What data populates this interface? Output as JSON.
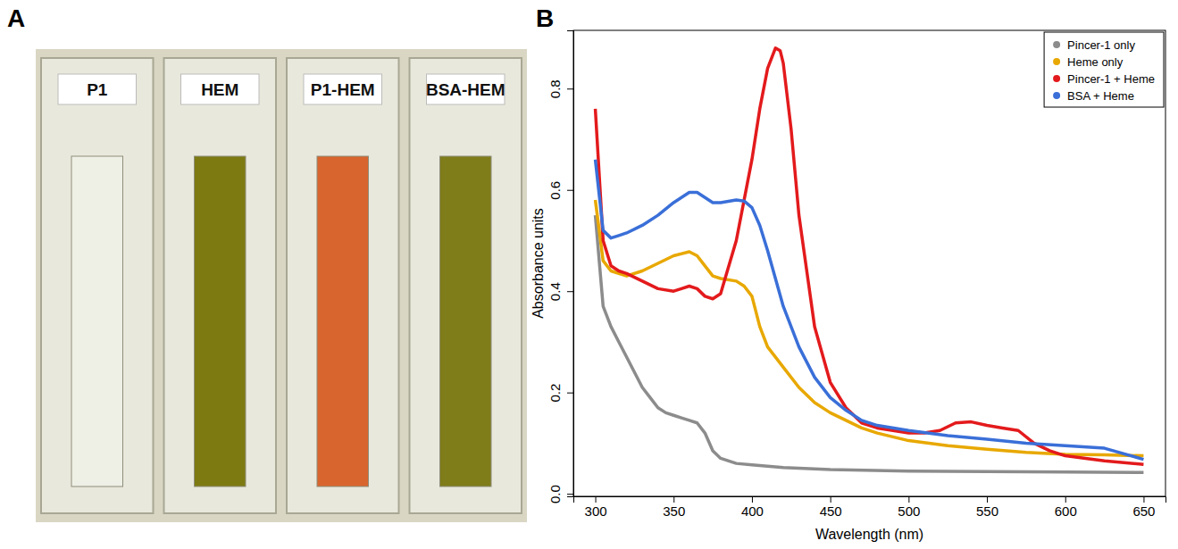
{
  "photo": {
    "letter": "A",
    "cuvettes": [
      {
        "label": "P1",
        "color": "#eef0e6"
      },
      {
        "label": "HEM",
        "color": "#7d7a12"
      },
      {
        "label": "P1-HEM",
        "color": "#d8652e"
      },
      {
        "label": "BSA-HEM",
        "color": "#7f7c1a"
      }
    ]
  },
  "chart_data": {
    "type": "line",
    "letter": "B",
    "x_label": "Wavelength (nm)",
    "y_label": "Absorbance units",
    "xlim": [
      286,
      664
    ],
    "xticks": [
      300,
      350,
      400,
      450,
      500,
      550,
      600,
      650
    ],
    "ylim": [
      -0.005,
      0.915
    ],
    "yticks": [
      {
        "value": 0,
        "label": "0.0"
      },
      0.2,
      0.4,
      0.6,
      0.8
    ],
    "legend": "top-right",
    "grid": false,
    "series": [
      {
        "name": "Pincer-1 only",
        "color": "#8c8c8c",
        "x": [
          300,
          305,
          310,
          315,
          320,
          325,
          330,
          335,
          340,
          345,
          350,
          355,
          360,
          365,
          370,
          375,
          380,
          390,
          400,
          420,
          450,
          500,
          550,
          600,
          650
        ],
        "values": [
          0.55,
          0.37,
          0.33,
          0.3,
          0.27,
          0.24,
          0.21,
          0.19,
          0.17,
          0.16,
          0.155,
          0.15,
          0.145,
          0.14,
          0.12,
          0.085,
          0.07,
          0.06,
          0.057,
          0.052,
          0.048,
          0.045,
          0.044,
          0.043,
          0.042
        ]
      },
      {
        "name": "Heme only",
        "color": "#e8a800",
        "x": [
          300,
          305,
          310,
          320,
          330,
          340,
          350,
          360,
          365,
          370,
          375,
          380,
          390,
          395,
          400,
          405,
          410,
          420,
          430,
          440,
          450,
          460,
          470,
          480,
          500,
          525,
          550,
          575,
          600,
          625,
          650
        ],
        "values": [
          0.58,
          0.46,
          0.44,
          0.43,
          0.44,
          0.455,
          0.47,
          0.478,
          0.47,
          0.45,
          0.43,
          0.425,
          0.42,
          0.41,
          0.39,
          0.33,
          0.29,
          0.25,
          0.21,
          0.18,
          0.16,
          0.145,
          0.13,
          0.12,
          0.105,
          0.095,
          0.088,
          0.082,
          0.078,
          0.077,
          0.075
        ]
      },
      {
        "name": "Pincer-1 + Heme",
        "color": "#e31a1c",
        "x": [
          300,
          305,
          310,
          315,
          320,
          330,
          340,
          350,
          355,
          360,
          365,
          370,
          375,
          380,
          390,
          400,
          405,
          410,
          415,
          418,
          420,
          425,
          430,
          440,
          450,
          460,
          470,
          480,
          490,
          500,
          510,
          520,
          530,
          540,
          550,
          560,
          570,
          580,
          590,
          600,
          625,
          650
        ],
        "values": [
          0.76,
          0.5,
          0.45,
          0.44,
          0.435,
          0.42,
          0.405,
          0.4,
          0.405,
          0.41,
          0.405,
          0.39,
          0.385,
          0.395,
          0.5,
          0.66,
          0.76,
          0.84,
          0.88,
          0.875,
          0.85,
          0.72,
          0.55,
          0.33,
          0.22,
          0.17,
          0.14,
          0.13,
          0.125,
          0.12,
          0.12,
          0.125,
          0.14,
          0.142,
          0.135,
          0.13,
          0.125,
          0.1,
          0.085,
          0.075,
          0.065,
          0.058
        ]
      },
      {
        "name": "BSA + Heme",
        "color": "#3a6fd8",
        "x": [
          300,
          305,
          310,
          315,
          320,
          330,
          340,
          350,
          360,
          365,
          370,
          375,
          380,
          390,
          395,
          400,
          405,
          410,
          420,
          430,
          440,
          450,
          460,
          470,
          480,
          500,
          525,
          550,
          575,
          600,
          625,
          650
        ],
        "values": [
          0.66,
          0.52,
          0.505,
          0.51,
          0.515,
          0.53,
          0.55,
          0.575,
          0.595,
          0.595,
          0.585,
          0.575,
          0.575,
          0.58,
          0.578,
          0.565,
          0.53,
          0.48,
          0.37,
          0.29,
          0.23,
          0.19,
          0.165,
          0.145,
          0.135,
          0.125,
          0.115,
          0.108,
          0.1,
          0.095,
          0.09,
          0.068
        ]
      }
    ]
  }
}
